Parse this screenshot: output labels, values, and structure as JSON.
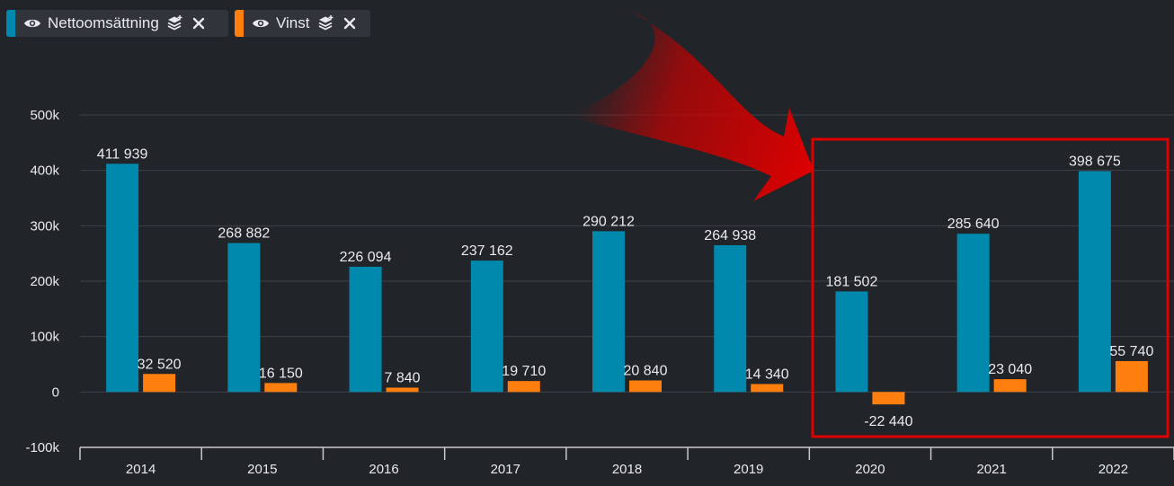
{
  "legend": [
    {
      "label": "Nettoomsättning",
      "color": "#0088ad",
      "visible_icon": "eye-icon",
      "layers_icon": "layers-icon",
      "close_icon": "close-icon"
    },
    {
      "label": "Vinst",
      "color": "#ff7f0e",
      "visible_icon": "eye-icon",
      "layers_icon": "layers-icon",
      "close_icon": "close-icon"
    }
  ],
  "highlight": {
    "arrow_color": "#d40000",
    "box_color": "#e00000",
    "covers_categories": [
      "2020",
      "2021",
      "2022"
    ]
  },
  "chart_data": {
    "type": "bar",
    "categories": [
      "2014",
      "2015",
      "2016",
      "2017",
      "2018",
      "2019",
      "2020",
      "2021",
      "2022"
    ],
    "series": [
      {
        "name": "Nettoomsättning",
        "color": "#0088ad",
        "values": [
          411939,
          268882,
          226094,
          237162,
          290212,
          264938,
          181502,
          285640,
          398675
        ],
        "labels": [
          "411 939",
          "268 882",
          "226 094",
          "237 162",
          "290 212",
          "264 938",
          "181 502",
          "285 640",
          "398 675"
        ]
      },
      {
        "name": "Vinst",
        "color": "#ff7f0e",
        "values": [
          32520,
          16150,
          7840,
          19710,
          20840,
          14340,
          -22440,
          23040,
          55740
        ],
        "labels": [
          "32 520",
          "16 150",
          "7 840",
          "19 710",
          "20 840",
          "14 340",
          "-22 440",
          "23 040",
          "55 740"
        ]
      }
    ],
    "ylim": [
      -100000,
      500000
    ],
    "yticks": [
      -100000,
      0,
      100000,
      200000,
      300000,
      400000,
      500000
    ],
    "ytick_labels": [
      "-100k",
      "0",
      "100k",
      "200k",
      "300k",
      "400k",
      "500k"
    ],
    "grid": true,
    "legend_position": "top-left"
  }
}
